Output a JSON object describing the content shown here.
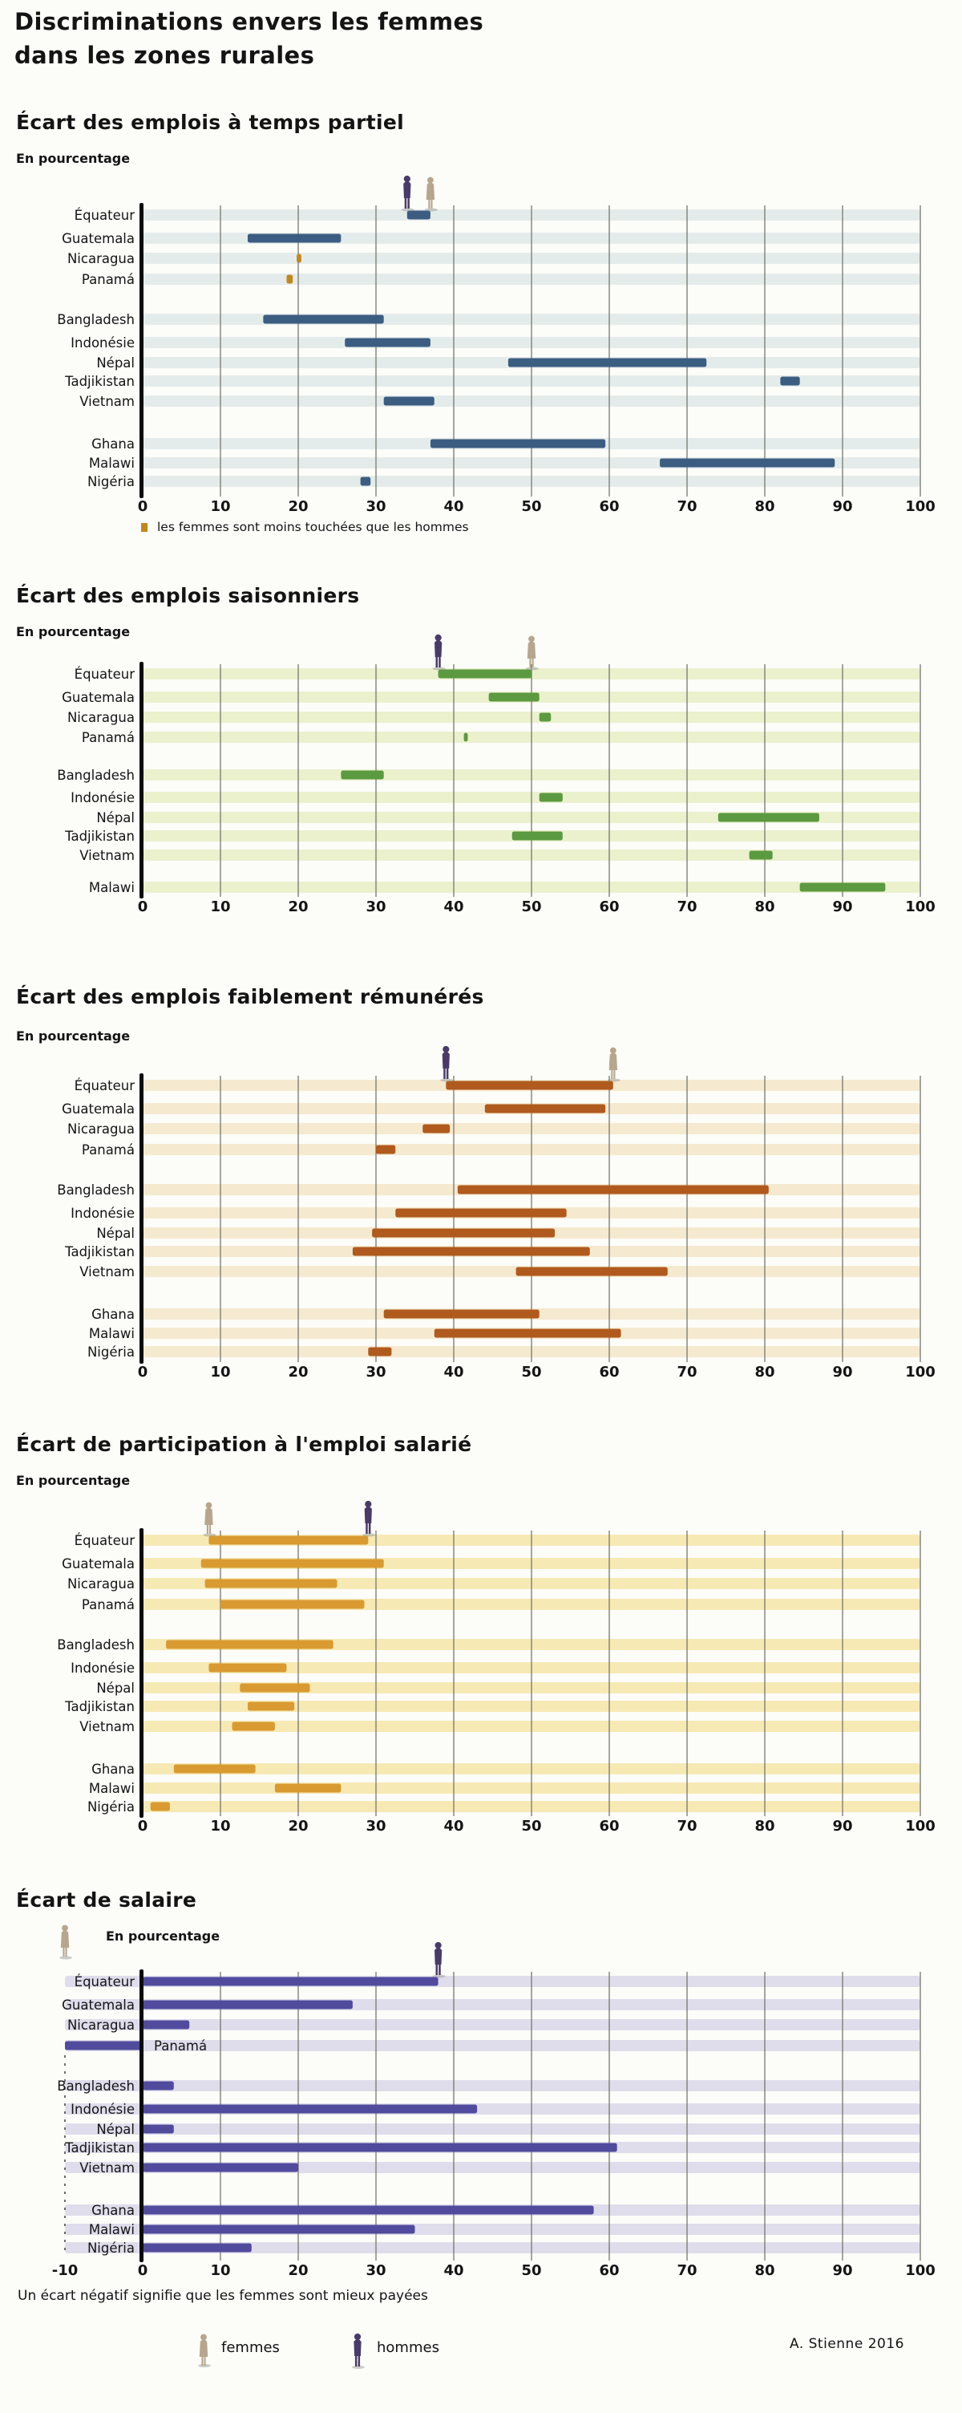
{
  "page": {
    "title_line1": "Discriminations envers les femmes",
    "title_line2": "dans les zones rurales",
    "footnote": "Un écart négatif signifie que les femmes sont mieux payées",
    "legend": {
      "femmes": "femmes",
      "hommes": "hommes"
    },
    "signature": "A. Stienne  2016",
    "colors": {
      "hommes": "#493b69",
      "femmes": "#b7a68d"
    }
  },
  "chart_data": [
    {
      "type": "bar",
      "title": "Écart des emplois à temps partiel",
      "subtitle": "En pourcentage",
      "axis": {
        "min": 0,
        "max": 100,
        "ticks": [
          0,
          10,
          20,
          30,
          40,
          50,
          60,
          70,
          80,
          90,
          100
        ]
      },
      "bar_color": "#3c5d82",
      "stripe_color": "#dfe9e9",
      "exception_color": "#c0881f",
      "legend_note": "les femmes sont moins touchées que les hommes",
      "figures": [
        {
          "name": "hommes",
          "value": 34
        },
        {
          "name": "femmes",
          "value": 37
        }
      ],
      "rows": [
        {
          "label": "Équateur",
          "from": 34,
          "to": 37
        },
        {
          "label": "Guatemala",
          "from": 13.5,
          "to": 25.5
        },
        {
          "label": "Nicaragua",
          "from": 19.8,
          "to": 20.4,
          "exception": true
        },
        {
          "label": "Panamá",
          "from": 18.5,
          "to": 19.3,
          "exception": true
        },
        {
          "label": "Bangladesh",
          "from": 15.5,
          "to": 31
        },
        {
          "label": "Indonésie",
          "from": 26,
          "to": 37
        },
        {
          "label": "Népal",
          "from": 47,
          "to": 72.5
        },
        {
          "label": "Tadjikistan",
          "from": 82,
          "to": 84.5
        },
        {
          "label": "Vietnam",
          "from": 31,
          "to": 37.5
        },
        {
          "label": "Ghana",
          "from": 37,
          "to": 59.5
        },
        {
          "label": "Malawi",
          "from": 66.5,
          "to": 89
        },
        {
          "label": "Nigéria",
          "from": 28,
          "to": 29.3
        }
      ]
    },
    {
      "type": "bar",
      "title": "Écart des emplois saisonniers",
      "subtitle": "En pourcentage",
      "axis": {
        "min": 0,
        "max": 100,
        "ticks": [
          0,
          10,
          20,
          30,
          40,
          50,
          60,
          70,
          80,
          90,
          100
        ]
      },
      "bar_color": "#5b9a40",
      "stripe_color": "#e7edc6",
      "figures": [
        {
          "name": "hommes",
          "value": 38
        },
        {
          "name": "femmes",
          "value": 50
        }
      ],
      "rows": [
        {
          "label": "Équateur",
          "from": 38,
          "to": 50
        },
        {
          "label": "Guatemala",
          "from": 44.5,
          "to": 51
        },
        {
          "label": "Nicaragua",
          "from": 51,
          "to": 52.5
        },
        {
          "label": "Panamá",
          "from": 41.3,
          "to": 41.8
        },
        {
          "label": "Bangladesh",
          "from": 25.5,
          "to": 31
        },
        {
          "label": "Indonésie",
          "from": 51,
          "to": 54
        },
        {
          "label": "Népal",
          "from": 74,
          "to": 87
        },
        {
          "label": "Tadjikistan",
          "from": 47.5,
          "to": 54
        },
        {
          "label": "Vietnam",
          "from": 78,
          "to": 81
        },
        {
          "label": "Malawi",
          "from": 84.5,
          "to": 95.5
        }
      ]
    },
    {
      "type": "bar",
      "title": "Écart des emplois faiblement rémunérés",
      "subtitle": "En pourcentage",
      "axis": {
        "min": 0,
        "max": 100,
        "ticks": [
          0,
          10,
          20,
          30,
          40,
          50,
          60,
          70,
          80,
          90,
          100
        ]
      },
      "bar_color": "#b05a1e",
      "stripe_color": "#f3e6c8",
      "figures": [
        {
          "name": "hommes",
          "value": 39
        },
        {
          "name": "femmes",
          "value": 60.5
        }
      ],
      "rows": [
        {
          "label": "Équateur",
          "from": 39,
          "to": 60.5
        },
        {
          "label": "Guatemala",
          "from": 44,
          "to": 59.5
        },
        {
          "label": "Nicaragua",
          "from": 36,
          "to": 39.5
        },
        {
          "label": "Panamá",
          "from": 30,
          "to": 32.5
        },
        {
          "label": "Bangladesh",
          "from": 40.5,
          "to": 80.5
        },
        {
          "label": "Indonésie",
          "from": 32.5,
          "to": 54.5
        },
        {
          "label": "Népal",
          "from": 29.5,
          "to": 53
        },
        {
          "label": "Tadjikistan",
          "from": 27,
          "to": 57.5
        },
        {
          "label": "Vietnam",
          "from": 48,
          "to": 67.5
        },
        {
          "label": "Ghana",
          "from": 31,
          "to": 51
        },
        {
          "label": "Malawi",
          "from": 37.5,
          "to": 61.5
        },
        {
          "label": "Nigéria",
          "from": 29,
          "to": 32
        }
      ]
    },
    {
      "type": "bar",
      "title": "Écart de participation à l'emploi salarié",
      "subtitle": "En pourcentage",
      "axis": {
        "min": 0,
        "max": 100,
        "ticks": [
          0,
          10,
          20,
          30,
          40,
          50,
          60,
          70,
          80,
          90,
          100
        ]
      },
      "bar_color": "#d99a31",
      "stripe_color": "#f5e5a8",
      "figures": [
        {
          "name": "femmes",
          "value": 8.5
        },
        {
          "name": "hommes",
          "value": 29
        }
      ],
      "rows": [
        {
          "label": "Équateur",
          "from": 8.5,
          "to": 29
        },
        {
          "label": "Guatemala",
          "from": 7.5,
          "to": 31
        },
        {
          "label": "Nicaragua",
          "from": 8,
          "to": 25
        },
        {
          "label": "Panamá",
          "from": 10,
          "to": 28.5
        },
        {
          "label": "Bangladesh",
          "from": 3,
          "to": 24.5
        },
        {
          "label": "Indonésie",
          "from": 8.5,
          "to": 18.5
        },
        {
          "label": "Népal",
          "from": 12.5,
          "to": 21.5
        },
        {
          "label": "Tadjikistan",
          "from": 13.5,
          "to": 19.5
        },
        {
          "label": "Vietnam",
          "from": 11.5,
          "to": 17
        },
        {
          "label": "Ghana",
          "from": 4,
          "to": 14.5
        },
        {
          "label": "Malawi",
          "from": 17,
          "to": 25.5
        },
        {
          "label": "Nigéria",
          "from": 1,
          "to": 3.5
        }
      ]
    },
    {
      "type": "bar",
      "title": "Écart de salaire",
      "subtitle": "En pourcentage",
      "axis": {
        "min": -10,
        "max": 100,
        "ticks": [
          -10,
          0,
          10,
          20,
          30,
          40,
          50,
          60,
          70,
          80,
          90,
          100
        ]
      },
      "bar_color": "#514b9e",
      "stripe_color": "#d9d7e9",
      "figures": [
        {
          "name": "femmes",
          "value": -10
        },
        {
          "name": "hommes",
          "value": 38
        }
      ],
      "rows": [
        {
          "label": "Équateur",
          "from": 0,
          "to": 38
        },
        {
          "label": "Guatemala",
          "from": 0,
          "to": 27
        },
        {
          "label": "Nicaragua",
          "from": 0,
          "to": 6
        },
        {
          "label": "Panamá",
          "from": -10,
          "to": 0,
          "label_inside": true
        },
        {
          "label": "Bangladesh",
          "from": 0,
          "to": 4
        },
        {
          "label": "Indonésie",
          "from": 0,
          "to": 43
        },
        {
          "label": "Népal",
          "from": 0,
          "to": 4
        },
        {
          "label": "Tadjikistan",
          "from": 0,
          "to": 61
        },
        {
          "label": "Vietnam",
          "from": 0,
          "to": 20
        },
        {
          "label": "Ghana",
          "from": 0,
          "to": 58
        },
        {
          "label": "Malawi",
          "from": 0,
          "to": 35
        },
        {
          "label": "Nigéria",
          "from": 0,
          "to": 14
        }
      ]
    }
  ]
}
